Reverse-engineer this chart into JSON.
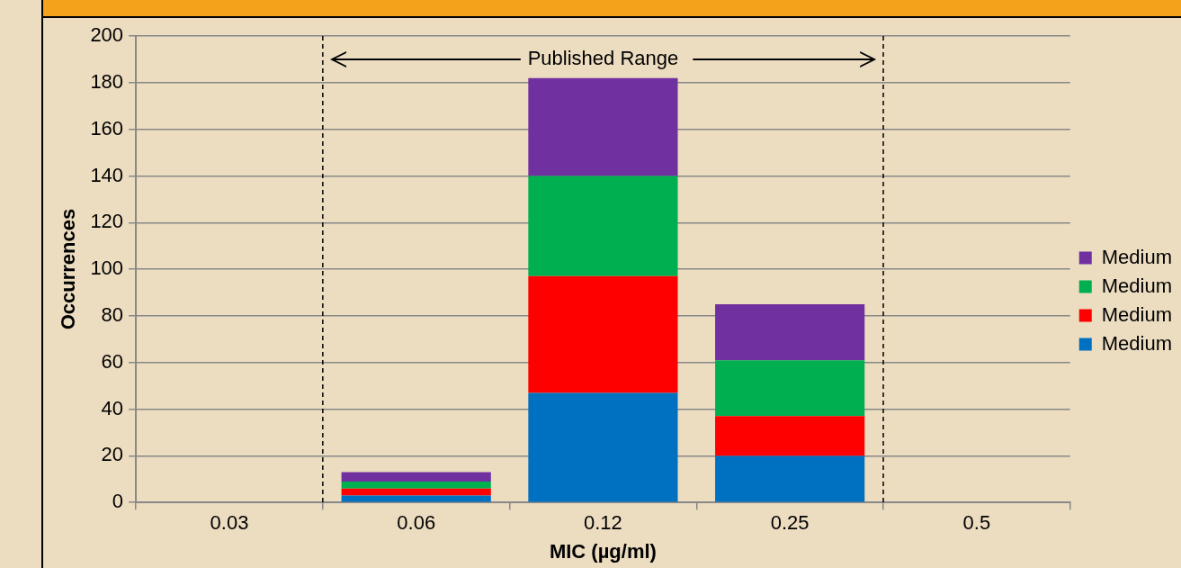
{
  "chart_data": {
    "type": "bar",
    "stacked": true,
    "xlabel": "MIC (µg/ml)",
    "ylabel": "Occurrences",
    "categories": [
      "0.03",
      "0.06",
      "0.12",
      "0.25",
      "0.5"
    ],
    "series": [
      {
        "name": "Medium",
        "color": "#0070c0",
        "values": [
          0,
          3,
          47,
          20,
          0
        ]
      },
      {
        "name": "Medium",
        "color": "#ff0000",
        "values": [
          0,
          3,
          50,
          17,
          0
        ]
      },
      {
        "name": "Medium",
        "color": "#00b050",
        "values": [
          0,
          3,
          43,
          24,
          0
        ]
      },
      {
        "name": "Medium",
        "color": "#7030a0",
        "values": [
          0,
          4,
          42,
          24,
          0
        ]
      }
    ],
    "ylim": [
      0,
      200
    ],
    "yticks": [
      0,
      20,
      40,
      60,
      80,
      100,
      120,
      140,
      160,
      180,
      200
    ],
    "grid": "y",
    "legend": "right",
    "annotations": [
      "Published Range"
    ]
  }
}
